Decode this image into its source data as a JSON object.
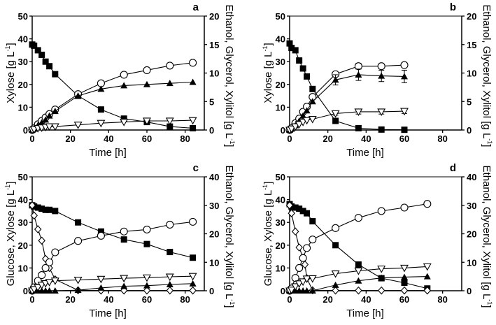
{
  "chart_data": [
    {
      "type": "line",
      "panel": "a",
      "xlabel": "Time [h]",
      "ylabel": "Xylose [g L",
      "ylabel_sup": "-1",
      "ylabel_end": "]",
      "y2label": "Ethanol, Glycerol, Xylitol [g L",
      "y2label_sup": "-1",
      "y2label_end": "]",
      "xlim": [
        0,
        90
      ],
      "xticks": [
        "0",
        "20",
        "40",
        "60",
        "80"
      ],
      "xtick_values": [
        0,
        20,
        40,
        60,
        80
      ],
      "ylim": [
        0,
        50
      ],
      "yticks": [
        "0",
        "10",
        "20",
        "30",
        "40",
        "50"
      ],
      "ytick_values": [
        0,
        10,
        20,
        30,
        40,
        50
      ],
      "y2lim": [
        0,
        20
      ],
      "y2ticks": [
        "0",
        "5",
        "10",
        "15",
        "20"
      ],
      "y2tick_values": [
        0,
        5,
        10,
        15,
        20
      ],
      "series": [
        {
          "name": "Xylose",
          "marker": "square-filled",
          "axis": "left",
          "x": [
            0,
            1,
            3,
            5,
            7,
            9,
            12,
            24,
            36,
            48,
            60,
            72,
            84
          ],
          "y": [
            37.5,
            37,
            35,
            33,
            30,
            28,
            24.5,
            15,
            9,
            5,
            3.5,
            1.5,
            0.8
          ]
        },
        {
          "name": "Ethanol",
          "marker": "circle-open",
          "axis": "right",
          "x": [
            0,
            1,
            3,
            5,
            7,
            9,
            12,
            24,
            36,
            48,
            60,
            72,
            84
          ],
          "y": [
            0,
            0.3,
            1,
            1.6,
            2.2,
            2.8,
            3.6,
            6.3,
            8.2,
            9.7,
            10.5,
            11.3,
            11.8
          ]
        },
        {
          "name": "Glycerol",
          "marker": "triangle-filled",
          "axis": "right",
          "x": [
            0,
            1,
            3,
            5,
            7,
            9,
            12,
            24,
            36,
            48,
            60,
            72,
            84
          ],
          "y": [
            0,
            0.2,
            0.8,
            1.3,
            1.8,
            2.5,
            3.3,
            6,
            7.2,
            7.8,
            8,
            8.2,
            8.4
          ]
        },
        {
          "name": "Xylitol",
          "marker": "triangle-down-open",
          "axis": "right",
          "x": [
            0,
            1,
            3,
            5,
            7,
            9,
            12,
            24,
            36,
            48,
            60,
            72,
            84
          ],
          "y": [
            0,
            0.1,
            0.3,
            0.4,
            0.5,
            0.6,
            0.6,
            0.9,
            1.2,
            1.4,
            1.6,
            1.6,
            1.7
          ]
        }
      ]
    },
    {
      "type": "line",
      "panel": "b",
      "xlabel": "Time [h]",
      "ylabel": "Xylose [g L",
      "ylabel_sup": "-1",
      "ylabel_end": "]",
      "y2label": "Ethanol, Glycerol, Xylitol [g L",
      "y2label_sup": "-1",
      "y2label_end": "]",
      "xlim": [
        0,
        90
      ],
      "xticks": [
        "0",
        "20",
        "40",
        "60",
        "80"
      ],
      "xtick_values": [
        0,
        20,
        40,
        60,
        80
      ],
      "ylim": [
        0,
        50
      ],
      "yticks": [
        "0",
        "10",
        "20",
        "30",
        "40",
        "50"
      ],
      "ytick_values": [
        0,
        10,
        20,
        30,
        40,
        50
      ],
      "y2lim": [
        0,
        20
      ],
      "y2ticks": [
        "0",
        "5",
        "10",
        "15",
        "20"
      ],
      "y2tick_values": [
        0,
        5,
        10,
        15,
        20
      ],
      "series": [
        {
          "name": "Xylose",
          "marker": "square-filled",
          "axis": "left",
          "x": [
            0,
            1,
            3,
            5,
            7,
            9,
            12,
            24,
            36,
            48,
            60
          ],
          "y": [
            38,
            36,
            35,
            30.5,
            27,
            23.5,
            18,
            4,
            0.8,
            0.2,
            0.1
          ]
        },
        {
          "name": "Ethanol",
          "marker": "circle-open",
          "axis": "right",
          "x": [
            0,
            1,
            3,
            5,
            7,
            9,
            12,
            24,
            36,
            48,
            60
          ],
          "y": [
            0,
            0.3,
            1.2,
            2,
            3.2,
            4.1,
            5.8,
            9.8,
            11.2,
            11.2,
            11.4
          ],
          "err": [
            0,
            0,
            0,
            0,
            0,
            0,
            0,
            0.3,
            0.5,
            0.4,
            0.3
          ]
        },
        {
          "name": "Glycerol",
          "marker": "triangle-filled",
          "axis": "right",
          "x": [
            0,
            1,
            3,
            5,
            7,
            9,
            12,
            24,
            36,
            48,
            60
          ],
          "y": [
            0,
            0.2,
            0.8,
            1.6,
            2.5,
            3.4,
            5,
            8.8,
            9.7,
            9.5,
            9.4
          ],
          "err": [
            0,
            0,
            0,
            0,
            0,
            0,
            0,
            0.9,
            1,
            1,
            1.1
          ]
        },
        {
          "name": "Xylitol",
          "marker": "triangle-down-open",
          "axis": "right",
          "x": [
            0,
            1,
            3,
            5,
            7,
            9,
            12,
            24,
            36,
            48,
            60
          ],
          "y": [
            0,
            0.2,
            0.6,
            1,
            1.4,
            1.7,
            1.9,
            2.9,
            3.2,
            3.2,
            3.3
          ],
          "err": [
            0,
            0,
            0,
            0,
            0,
            0,
            0,
            0.3,
            0.4,
            0.4,
            0.4
          ]
        }
      ]
    },
    {
      "type": "line",
      "panel": "c",
      "xlabel": "Time [h]",
      "ylabel": "Glucose, Xylose [g L",
      "ylabel_sup": "-1",
      "ylabel_end": "]",
      "y2label": "Ethanol, Glycerol, Xylitol [g L",
      "y2label_sup": "-1",
      "y2label_end": "]",
      "xlim": [
        0,
        90
      ],
      "xticks": [
        "0",
        "20",
        "40",
        "60",
        "80"
      ],
      "xtick_values": [
        0,
        20,
        40,
        60,
        80
      ],
      "ylim": [
        0,
        50
      ],
      "yticks": [
        "0",
        "10",
        "20",
        "30",
        "40",
        "50"
      ],
      "ytick_values": [
        0,
        10,
        20,
        30,
        40,
        50
      ],
      "y2lim": [
        0,
        40
      ],
      "y2ticks": [
        "0",
        "10",
        "20",
        "30",
        "40"
      ],
      "y2tick_values": [
        0,
        10,
        20,
        30,
        40
      ],
      "series": [
        {
          "name": "Xylose",
          "marker": "square-filled",
          "axis": "left",
          "x": [
            0,
            1,
            3,
            5,
            7,
            9,
            12,
            24,
            36,
            48,
            60,
            72,
            84
          ],
          "y": [
            37.5,
            37,
            36.5,
            36,
            35.5,
            35.5,
            35,
            30,
            26,
            22.5,
            20.5,
            17,
            14.5
          ]
        },
        {
          "name": "Glucose",
          "marker": "diamond-open",
          "axis": "left",
          "x": [
            0,
            1,
            3,
            5,
            7,
            9,
            12,
            24,
            36,
            48,
            60,
            72,
            84
          ],
          "y": [
            37.5,
            33,
            27,
            22,
            14,
            10,
            5,
            0.2,
            0.1,
            0.1,
            0.1,
            0.1,
            0.1
          ]
        },
        {
          "name": "Ethanol",
          "marker": "circle-open",
          "axis": "right",
          "x": [
            0,
            1,
            3,
            5,
            7,
            9,
            12,
            24,
            36,
            48,
            60,
            72,
            84
          ],
          "y": [
            0,
            1.2,
            3.5,
            5.5,
            8,
            10,
            13.5,
            17.5,
            19.3,
            20.8,
            21.5,
            23.2,
            24.2
          ]
        },
        {
          "name": "Glycerol",
          "marker": "triangle-filled",
          "axis": "right",
          "x": [
            0,
            1,
            3,
            5,
            7,
            9,
            12,
            24,
            36,
            48,
            60,
            72,
            84
          ],
          "y": [
            0,
            0,
            0,
            0,
            0,
            0,
            0,
            0.2,
            1,
            1.6,
            1.8,
            2.2,
            2.5
          ]
        },
        {
          "name": "Xylitol",
          "marker": "triangle-down-open",
          "axis": "right",
          "x": [
            0,
            1,
            3,
            5,
            7,
            9,
            12,
            24,
            36,
            48,
            60,
            72,
            84
          ],
          "y": [
            0,
            0.5,
            1.2,
            2,
            2.6,
            3,
            3.5,
            3.8,
            4.1,
            4.4,
            4.6,
            4.9,
            5.1
          ]
        }
      ]
    },
    {
      "type": "line",
      "panel": "d",
      "xlabel": "Time [h]",
      "ylabel": "Glucose, Xylose [g L",
      "ylabel_sup": "-1",
      "ylabel_end": "]",
      "y2label": "Ethanol, Glycerol, Xylitol [g L",
      "y2label_sup": "-1",
      "y2label_end": "]",
      "xlim": [
        0,
        90
      ],
      "xticks": [
        "0",
        "20",
        "40",
        "60",
        "80"
      ],
      "xtick_values": [
        0,
        20,
        40,
        60,
        80
      ],
      "ylim": [
        0,
        50
      ],
      "yticks": [
        "0",
        "10",
        "20",
        "30",
        "40",
        "50"
      ],
      "ytick_values": [
        0,
        10,
        20,
        30,
        40,
        50
      ],
      "y2lim": [
        0,
        40
      ],
      "y2ticks": [
        "0",
        "10",
        "20",
        "30",
        "40"
      ],
      "y2tick_values": [
        0,
        10,
        20,
        30,
        40
      ],
      "series": [
        {
          "name": "Xylose",
          "marker": "square-filled",
          "axis": "left",
          "x": [
            0,
            1,
            3,
            5,
            7,
            9,
            12,
            24,
            36,
            48,
            60,
            72
          ],
          "y": [
            38,
            37,
            36.5,
            36,
            35,
            34,
            30.5,
            20,
            11.5,
            5.5,
            3.5,
            1
          ]
        },
        {
          "name": "Glucose",
          "marker": "diamond-open",
          "axis": "left",
          "x": [
            0,
            1,
            3,
            5,
            7,
            8,
            9,
            12,
            24,
            36,
            48,
            60,
            72
          ],
          "y": [
            37.5,
            34,
            26,
            19,
            14.5,
            11.5,
            5.5,
            0.2,
            0.1,
            0.1,
            0.1,
            0.1,
            0.1
          ]
        },
        {
          "name": "Ethanol",
          "marker": "circle-open",
          "axis": "right",
          "x": [
            0,
            1,
            3,
            5,
            7,
            9,
            12,
            24,
            36,
            48,
            60,
            72
          ],
          "y": [
            0,
            0.8,
            4.5,
            8,
            11.5,
            15,
            18,
            22,
            25.6,
            28,
            29.2,
            30.5
          ]
        },
        {
          "name": "Glycerol",
          "marker": "triangle-filled",
          "axis": "right",
          "x": [
            0,
            1,
            3,
            5,
            7,
            9,
            12,
            24,
            36,
            48,
            60,
            72
          ],
          "y": [
            0,
            0,
            0,
            0,
            0,
            0,
            0,
            2,
            3.5,
            4.5,
            4.8,
            5
          ]
        },
        {
          "name": "Xylitol",
          "marker": "triangle-down-open",
          "axis": "right",
          "x": [
            0,
            1,
            3,
            5,
            7,
            9,
            12,
            24,
            36,
            48,
            60,
            72
          ],
          "y": [
            0,
            0.3,
            1.5,
            2.5,
            3.2,
            4.2,
            4.3,
            6,
            7,
            7.7,
            8,
            8.5
          ]
        }
      ]
    }
  ]
}
